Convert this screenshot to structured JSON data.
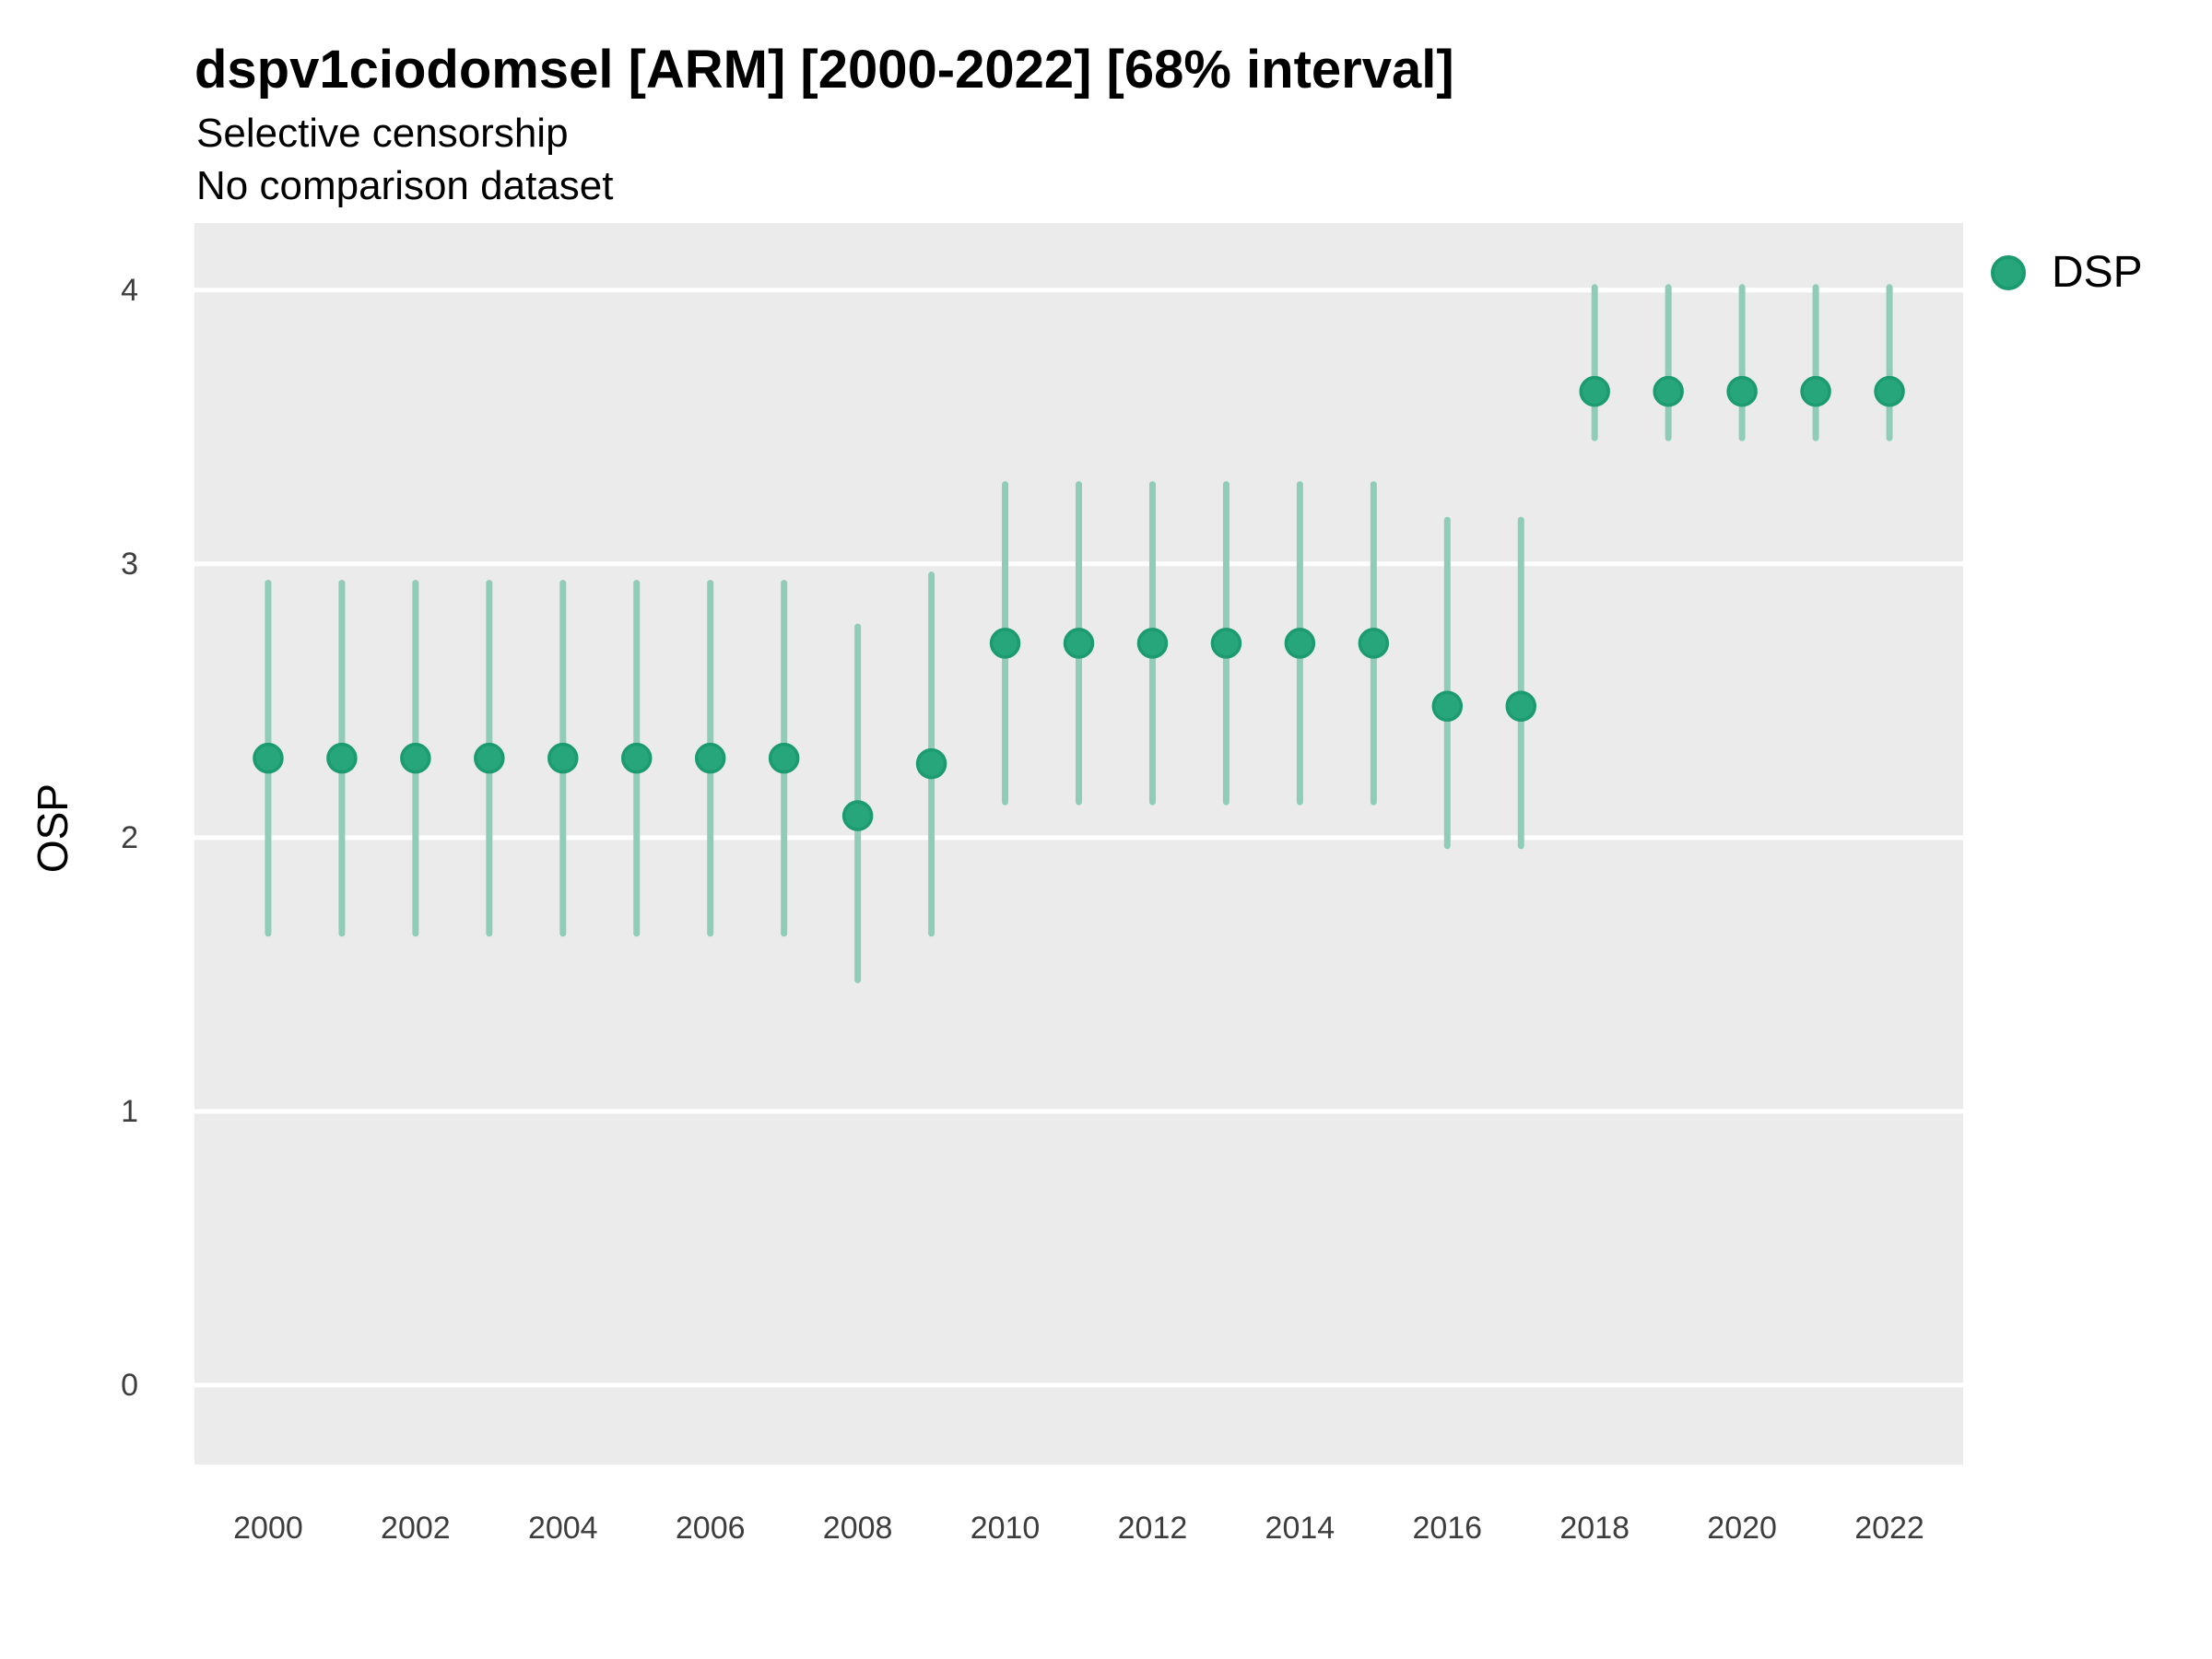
{
  "chart_data": {
    "type": "scatter",
    "mark": "pointrange",
    "title": "dspv1ciodomsel [ARM] [2000-2022] [68% interval]",
    "subtitle_line1": "Selective censorship",
    "subtitle_line2": "No comparison dataset",
    "xlabel": "",
    "ylabel": "OSP",
    "xlim": [
      1999,
      2023
    ],
    "ylim": [
      -0.29,
      4.245
    ],
    "x_ticks": [
      2000,
      2002,
      2004,
      2006,
      2008,
      2010,
      2012,
      2014,
      2016,
      2018,
      2020,
      2022
    ],
    "y_ticks": [
      0,
      1,
      2,
      3,
      4
    ],
    "grid": {
      "major": true,
      "minor": false,
      "color": "#FFFFFF"
    },
    "panel_background": "#EBEBEB",
    "legend_position": "right-top",
    "interval_label": "68% interval",
    "series": [
      {
        "name": "DSP",
        "point_color": "#27A67B",
        "point_stroke": "#1B9B6F",
        "interval_color": "#8FCDB8",
        "x": [
          2000,
          2001,
          2002,
          2003,
          2004,
          2005,
          2006,
          2007,
          2008,
          2009,
          2010,
          2011,
          2012,
          2013,
          2014,
          2015,
          2016,
          2017,
          2018,
          2019,
          2020,
          2021,
          2022
        ],
        "y": [
          2.29,
          2.29,
          2.29,
          2.29,
          2.29,
          2.29,
          2.29,
          2.29,
          2.08,
          2.27,
          2.71,
          2.71,
          2.71,
          2.71,
          2.71,
          2.71,
          2.48,
          2.48,
          3.63,
          3.63,
          3.63,
          3.63,
          3.63
        ],
        "y_low": [
          1.65,
          1.65,
          1.65,
          1.65,
          1.65,
          1.65,
          1.65,
          1.65,
          1.48,
          1.65,
          2.13,
          2.13,
          2.13,
          2.13,
          2.13,
          2.13,
          1.97,
          1.97,
          3.46,
          3.46,
          3.46,
          3.46,
          3.46
        ],
        "y_high": [
          2.93,
          2.93,
          2.93,
          2.93,
          2.93,
          2.93,
          2.93,
          2.93,
          2.77,
          2.96,
          3.29,
          3.29,
          3.29,
          3.29,
          3.29,
          3.29,
          3.16,
          3.16,
          4.01,
          4.01,
          4.01,
          4.01,
          4.01
        ]
      }
    ]
  }
}
